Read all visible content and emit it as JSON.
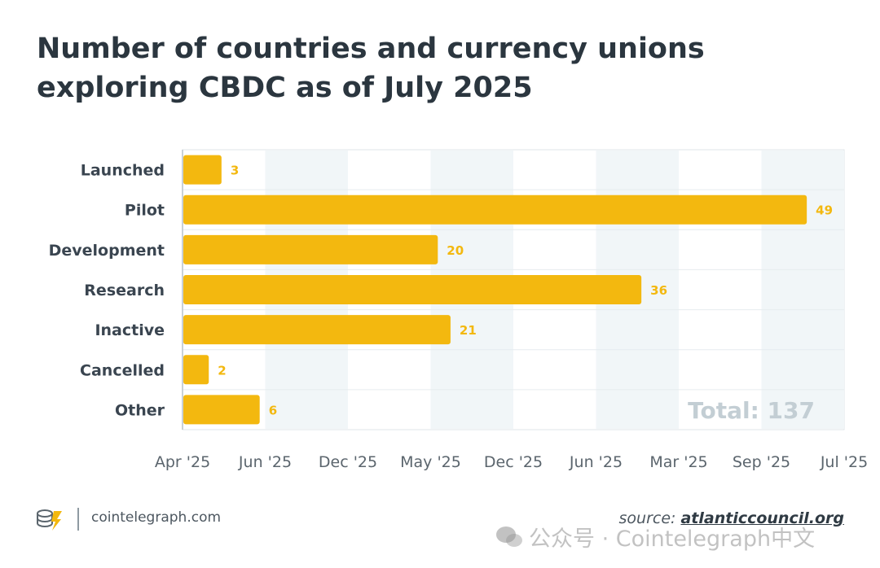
{
  "title": "Number of countries and currency unions exploring CBDC as of July 2025",
  "chart_data": {
    "type": "bar",
    "orientation": "horizontal",
    "categories": [
      "Launched",
      "Pilot",
      "Development",
      "Research",
      "Inactive",
      "Cancelled",
      "Other"
    ],
    "values": [
      3,
      49,
      20,
      36,
      21,
      2,
      6
    ],
    "x_tick_labels": [
      "Apr '25",
      "Jun '25",
      "Dec '25",
      "May '25",
      "Dec '25",
      "Jun '25",
      "Mar '25",
      "Sep '25",
      "Jul '25"
    ],
    "xlim": [
      0,
      52
    ],
    "annotation": "Total: 137",
    "bar_color": "#f3b80f",
    "label_color": "#f3b80f"
  },
  "footer": {
    "site": "cointelegraph.com",
    "source_prefix": "source: ",
    "source_name": "atlanticcouncil.org"
  },
  "watermark": "公众号 · Cointelegraph中文",
  "icons": {
    "logo": "cointelegraph-logo-icon",
    "wechat": "wechat-icon"
  }
}
